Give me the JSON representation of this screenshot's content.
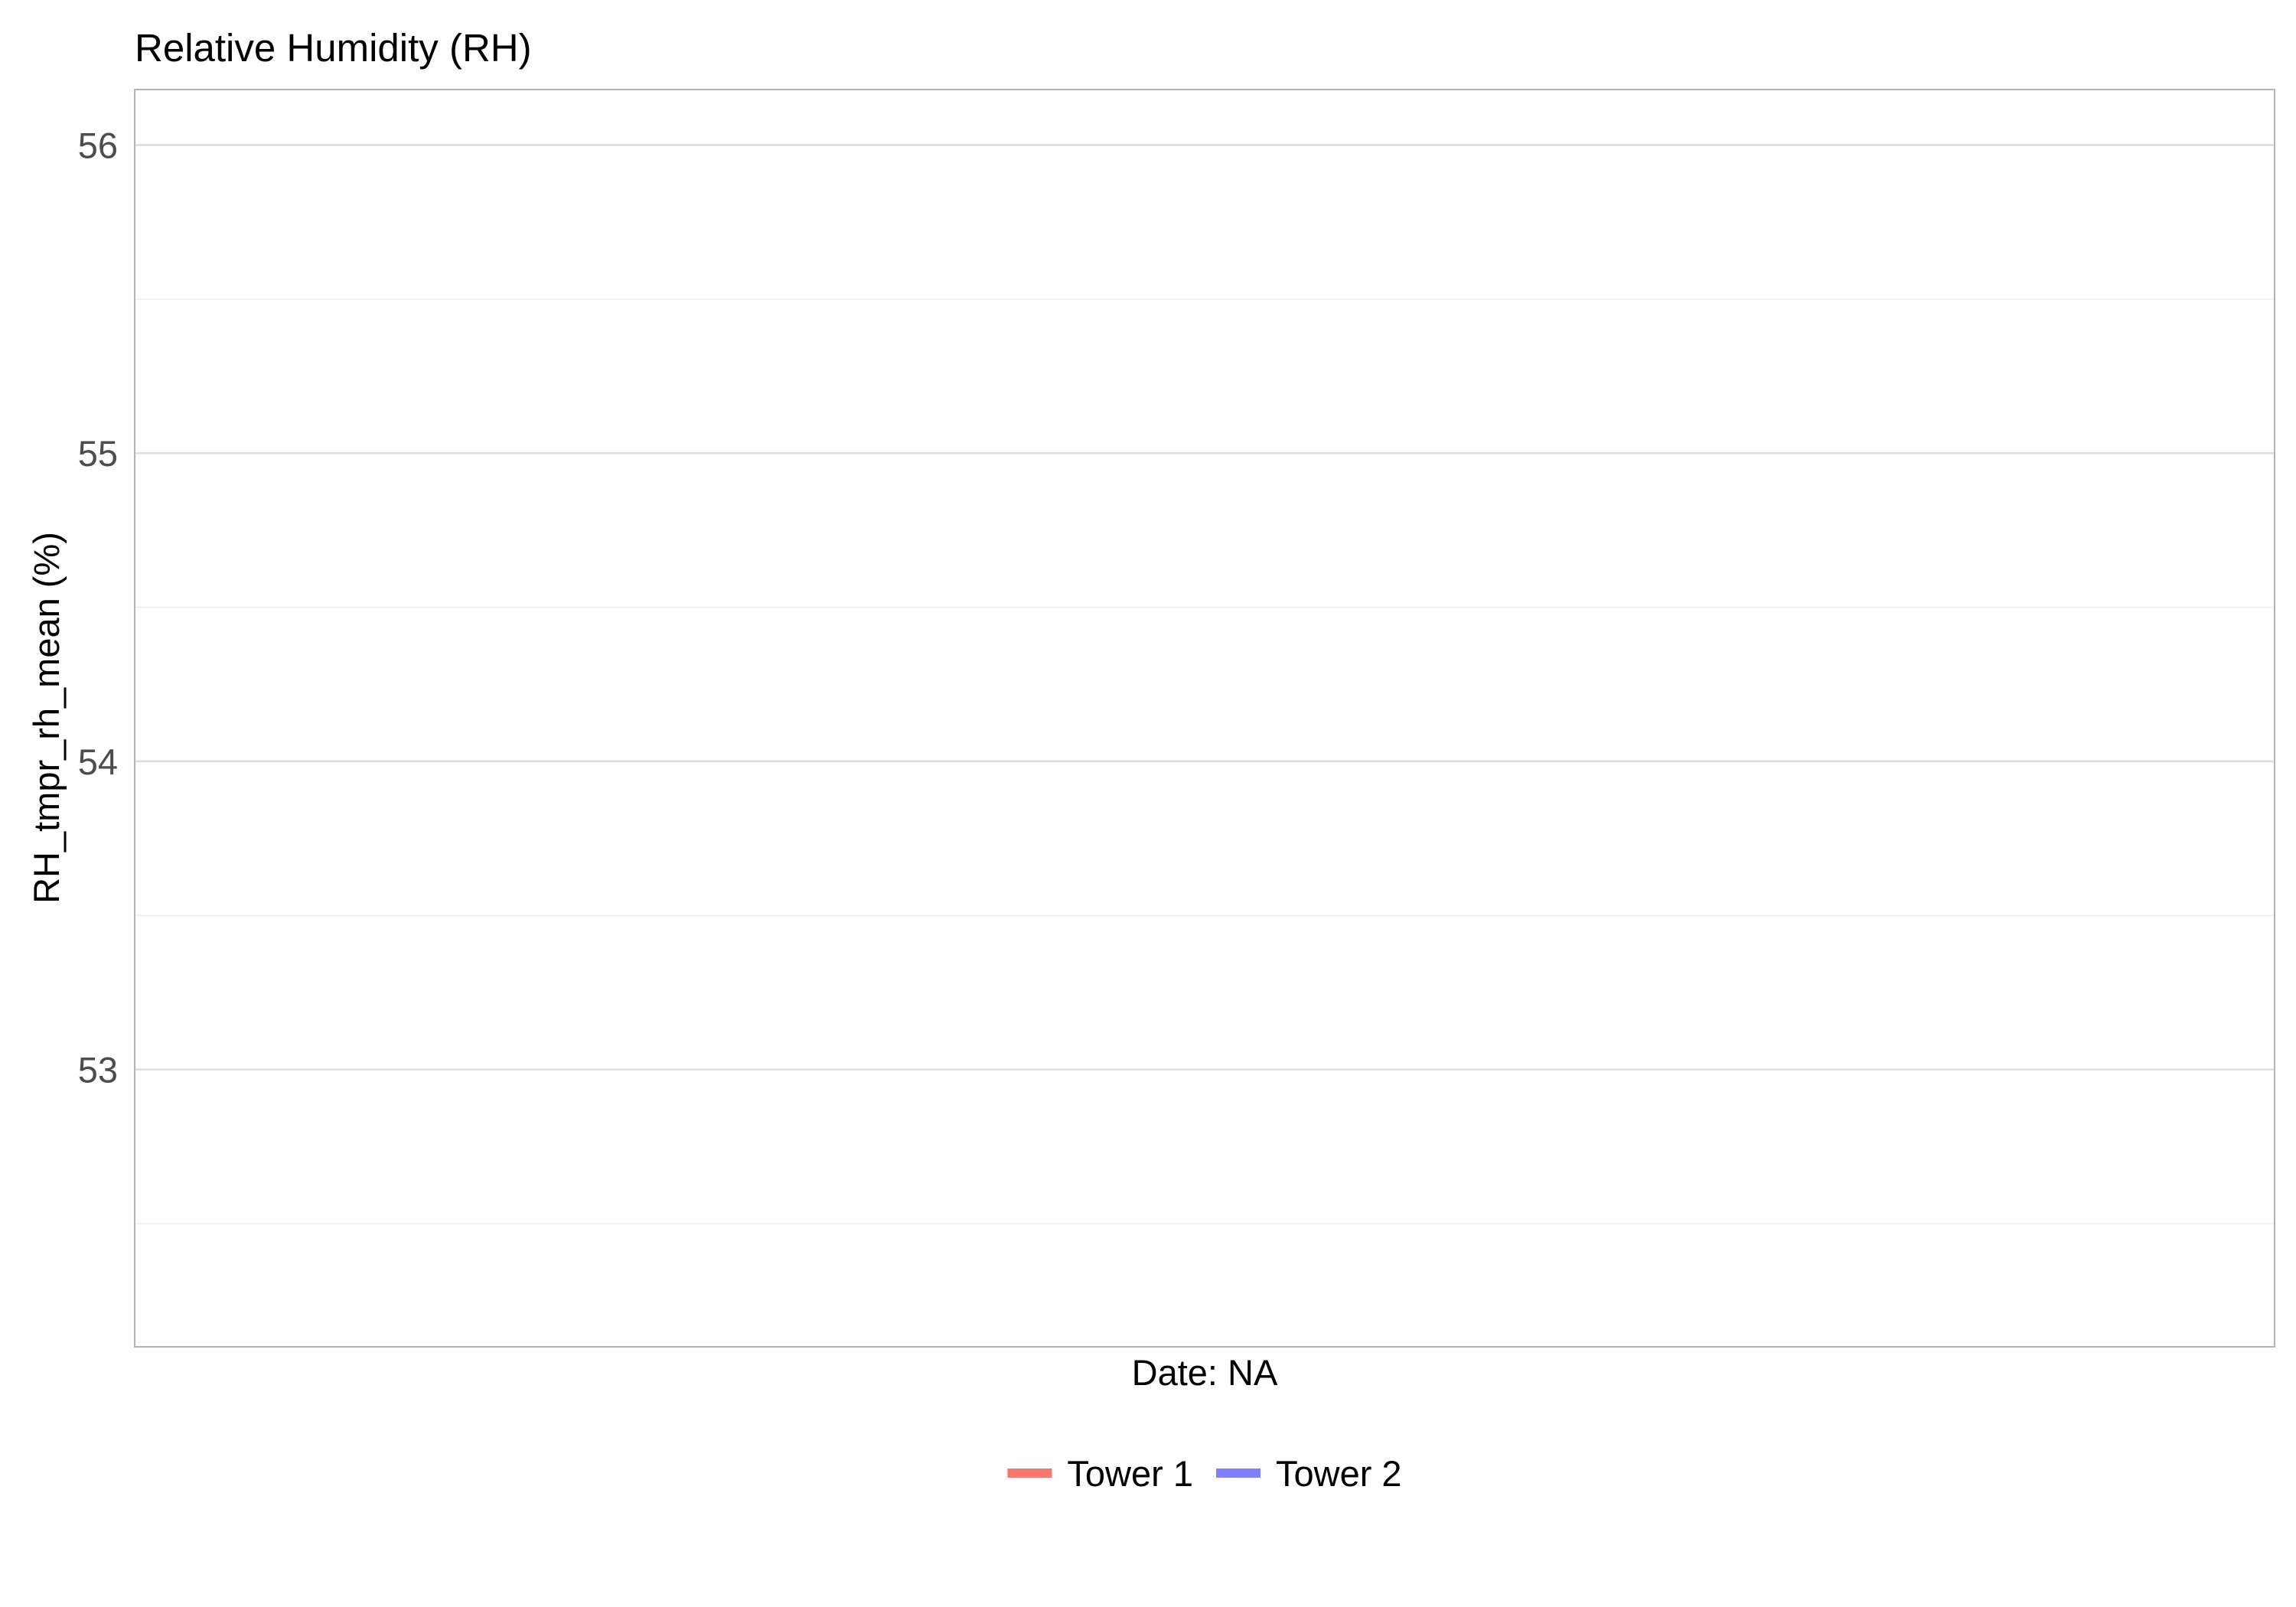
{
  "chart_data": {
    "type": "line",
    "title": "Relative Humidity (RH)",
    "xlabel": "Date: NA",
    "ylabel": "RH_tmpr_rh_mean (%)",
    "ylim": [
      52.1,
      56.18
    ],
    "yticks": [
      {
        "value": 53,
        "label": "53"
      },
      {
        "value": 54,
        "label": "54"
      },
      {
        "value": 55,
        "label": "55"
      },
      {
        "value": 56,
        "label": "56"
      }
    ],
    "y_minor_gridlines": [
      52.5,
      53.5,
      54.5,
      55.5
    ],
    "grid": true,
    "legend_position": "bottom",
    "series": [
      {
        "name": "Tower 1",
        "color": "#f8766d",
        "values": []
      },
      {
        "name": "Tower 2",
        "color": "#8080ff",
        "values": []
      }
    ]
  }
}
